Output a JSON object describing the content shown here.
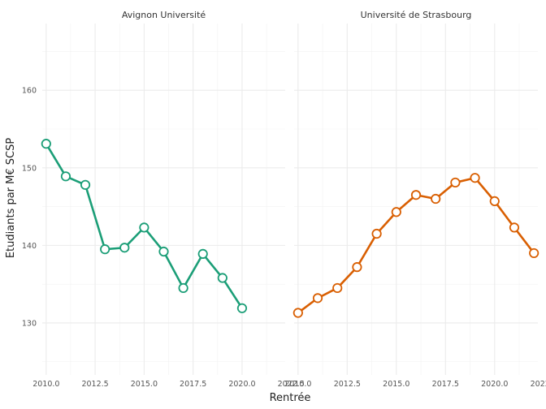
{
  "chart_data": {
    "type": "line",
    "xlabel": "Rentrée",
    "ylabel": "Etudiants par M€ SCSP",
    "xlim": [
      2009.8,
      2022.2
    ],
    "ylim": [
      123.3,
      168.6
    ],
    "x_ticks": [
      2010.0,
      2012.5,
      2015.0,
      2017.5,
      2020.0,
      2022.5
    ],
    "x_tick_labels": [
      "2010.0",
      "2012.5",
      "2015.0",
      "2017.5",
      "2020.0",
      "2022.5"
    ],
    "y_ticks": [
      130,
      140,
      150,
      160
    ],
    "y_tick_labels": [
      "130",
      "140",
      "150",
      "160"
    ],
    "grid": true,
    "panels": [
      {
        "strip": "Avignon Université",
        "color": "#1b9e77",
        "x": [
          2010,
          2011,
          2012,
          2013,
          2014,
          2015,
          2016,
          2017,
          2018,
          2019,
          2020
        ],
        "y": [
          153.1,
          148.9,
          147.8,
          139.5,
          139.7,
          142.3,
          139.2,
          134.5,
          138.9,
          135.8,
          131.9
        ]
      },
      {
        "strip": "Université de Strasbourg",
        "color": "#d95f02",
        "x": [
          2010,
          2011,
          2012,
          2013,
          2014,
          2015,
          2016,
          2017,
          2018,
          2019,
          2020,
          2021,
          2022
        ],
        "y": [
          131.3,
          133.2,
          134.5,
          137.2,
          141.5,
          144.3,
          146.5,
          146.0,
          148.1,
          148.7,
          145.7,
          142.3,
          139.0
        ]
      }
    ]
  }
}
